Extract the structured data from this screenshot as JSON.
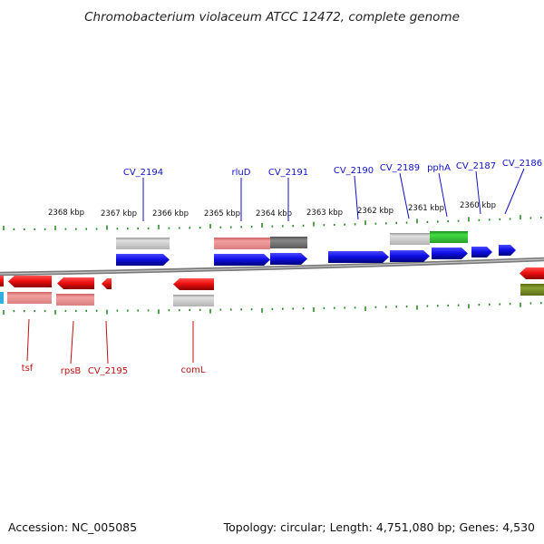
{
  "title": "Chromobacterium violaceum ATCC 12472, complete genome",
  "footer": {
    "accession": "Accession: NC_005085",
    "summary": "Topology: circular; Length: 4,751,080 bp; Genes: 4,530"
  },
  "scale_labels": [
    "2368 kbp",
    "2367 kbp",
    "2366 kbp",
    "2365 kbp",
    "2364 kbp",
    "2363 kbp",
    "2362 kbp",
    "2361 kbp",
    "2360 kbp"
  ],
  "top_gene_labels": [
    "CV_2194",
    "rluD",
    "CV_2191",
    "CV_2190",
    "CV_2189",
    "pphA",
    "CV_2187",
    "CV_2186"
  ],
  "bottom_gene_labels": [
    "tsf",
    "rpsB",
    "CV_2195",
    "comL"
  ],
  "colors": {
    "forward_strand": "#1010e0",
    "reverse_strand": "#e01818",
    "top_label": "#1010c8",
    "bottom_label": "#c01010",
    "tick": "#2a8a2a",
    "backbone": "#777777"
  }
}
